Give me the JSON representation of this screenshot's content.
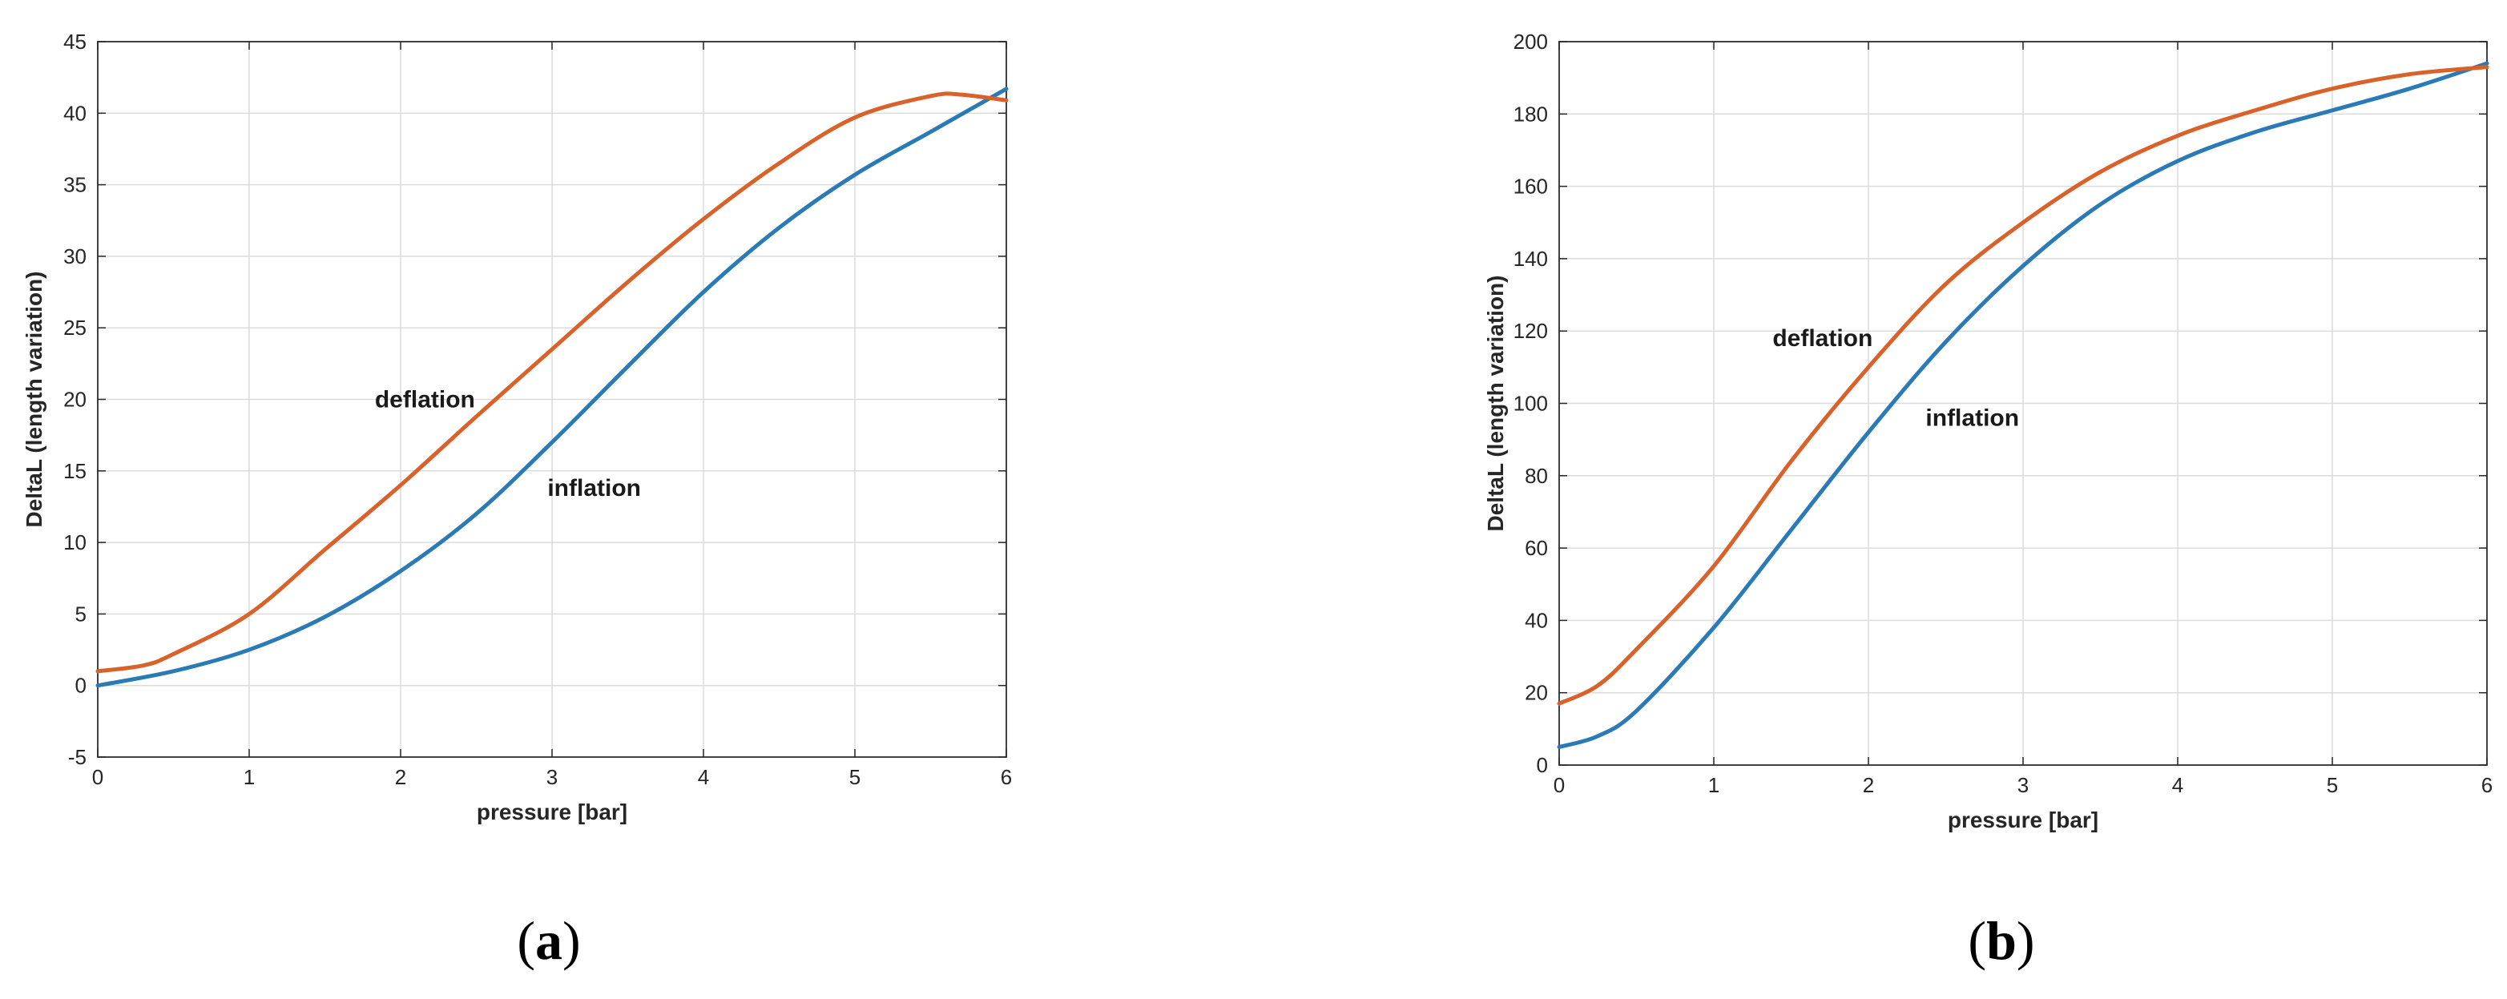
{
  "chart_data": [
    {
      "type": "line",
      "panel_label": "a",
      "xlabel": "pressure [bar]",
      "ylabel": "DeltaL (length variation)",
      "xlim": [
        0,
        6
      ],
      "ylim": [
        -5,
        45
      ],
      "xticks": [
        "0",
        "1",
        "2",
        "3",
        "4",
        "5",
        "6"
      ],
      "yticks": [
        "-5",
        "0",
        "5",
        "10",
        "15",
        "20",
        "25",
        "30",
        "35",
        "40",
        "45"
      ],
      "grid": true,
      "series": [
        {
          "key": "inflation",
          "color": "#2a7ab5",
          "x": [
            0,
            0.5,
            1,
            1.5,
            2,
            2.5,
            3,
            3.5,
            4,
            4.5,
            5,
            5.5,
            6
          ],
          "y": [
            0,
            1,
            2.5,
            4.8,
            8,
            12,
            17,
            22.3,
            27.5,
            32,
            35.7,
            38.7,
            41.7
          ]
        },
        {
          "key": "deflation",
          "color": "#d9622b",
          "x": [
            0,
            0.3,
            0.5,
            1,
            1.5,
            2,
            2.5,
            3,
            3.5,
            4,
            4.5,
            5,
            5.5,
            5.7,
            6
          ],
          "y": [
            1,
            1.4,
            2.2,
            5,
            9.5,
            14,
            18.8,
            23.5,
            28.2,
            32.6,
            36.5,
            39.7,
            41.2,
            41.3,
            40.9
          ]
        }
      ],
      "annotations": [
        {
          "text": "deflation",
          "x": 1.83,
          "y": 20
        },
        {
          "text": "inflation",
          "x": 2.97,
          "y": 13.8
        }
      ]
    },
    {
      "type": "line",
      "panel_label": "b",
      "xlabel": "pressure [bar]",
      "ylabel": "DeltaL (length variation)",
      "xlim": [
        0,
        6
      ],
      "ylim": [
        0,
        200
      ],
      "xticks": [
        "0",
        "1",
        "2",
        "3",
        "4",
        "5",
        "6"
      ],
      "yticks": [
        "0",
        "20",
        "40",
        "60",
        "80",
        "100",
        "120",
        "140",
        "160",
        "180",
        "200"
      ],
      "grid": true,
      "series": [
        {
          "key": "inflation",
          "color": "#2a7ab5",
          "x": [
            0,
            0.25,
            0.5,
            1,
            1.5,
            2,
            2.5,
            3,
            3.5,
            4,
            4.5,
            5,
            5.5,
            6
          ],
          "y": [
            5,
            8,
            15,
            38,
            65,
            92,
            117,
            138,
            155,
            167,
            175,
            181,
            187,
            194
          ]
        },
        {
          "key": "deflation",
          "color": "#d9622b",
          "x": [
            0,
            0.25,
            0.5,
            1,
            1.5,
            2,
            2.5,
            3,
            3.5,
            4,
            4.5,
            5,
            5.5,
            6
          ],
          "y": [
            17,
            22,
            32,
            55,
            84,
            110,
            133,
            150,
            164,
            174,
            181,
            187,
            191,
            193
          ]
        }
      ],
      "annotations": [
        {
          "text": "deflation",
          "x": 1.38,
          "y": 118
        },
        {
          "text": "inflation",
          "x": 2.37,
          "y": 96
        }
      ]
    }
  ]
}
